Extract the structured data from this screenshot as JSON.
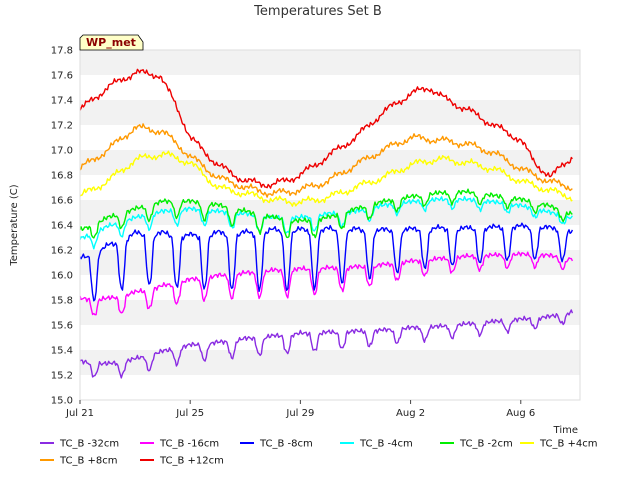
{
  "chart_data": {
    "type": "line",
    "title": "Temperatures Set B",
    "xlabel": "Time",
    "ylabel": "Temperature (C)",
    "badge": "WP_met",
    "x_range": [
      "Jul 21",
      "Aug 8"
    ],
    "ylim": [
      15.0,
      17.8
    ],
    "y_ticks": [
      "15.0",
      "15.2",
      "15.4",
      "15.6",
      "15.8",
      "16.0",
      "16.2",
      "16.4",
      "16.6",
      "16.8",
      "17.0",
      "17.2",
      "17.4",
      "17.6",
      "17.8"
    ],
    "x_ticks": [
      "Jul 21",
      "Jul 25",
      "Jul 29",
      "Aug 2",
      "Aug 6"
    ],
    "grid": "horizontal alternating bands",
    "legend_position": "bottom",
    "series": [
      {
        "name": "TC_B -32cm",
        "color": "#8a2be2",
        "day_offset": 0.35,
        "level": [
          [
            0,
            15.3
          ],
          [
            1,
            15.28
          ],
          [
            2,
            15.32
          ],
          [
            3,
            15.38
          ],
          [
            4,
            15.43
          ],
          [
            5,
            15.45
          ],
          [
            6,
            15.48
          ],
          [
            7,
            15.5
          ],
          [
            8,
            15.52
          ],
          [
            9,
            15.53
          ],
          [
            10,
            15.54
          ],
          [
            11,
            15.55
          ],
          [
            12,
            15.57
          ],
          [
            13,
            15.58
          ],
          [
            14,
            15.6
          ],
          [
            15,
            15.62
          ],
          [
            16,
            15.64
          ],
          [
            17,
            15.66
          ],
          [
            17.9,
            15.7
          ]
        ],
        "amplitude": [
          [
            0,
            0.1
          ],
          [
            8,
            0.14
          ],
          [
            12,
            0.1
          ],
          [
            17.9,
            0.07
          ]
        ]
      },
      {
        "name": "TC_B -16cm",
        "color": "#ff00ff",
        "day_offset": 0.35,
        "level": [
          [
            0,
            15.8
          ],
          [
            1,
            15.8
          ],
          [
            2,
            15.85
          ],
          [
            3,
            15.9
          ],
          [
            4,
            15.95
          ],
          [
            5,
            15.98
          ],
          [
            6,
            16.0
          ],
          [
            7,
            16.02
          ],
          [
            8,
            16.03
          ],
          [
            9,
            16.04
          ],
          [
            10,
            16.05
          ],
          [
            11,
            16.07
          ],
          [
            12,
            16.1
          ],
          [
            13,
            16.12
          ],
          [
            14,
            16.14
          ],
          [
            15,
            16.15
          ],
          [
            16,
            16.16
          ],
          [
            17,
            16.15
          ],
          [
            17.9,
            16.12
          ]
        ],
        "amplitude": [
          [
            0,
            0.12
          ],
          [
            8,
            0.2
          ],
          [
            12,
            0.12
          ],
          [
            17.9,
            0.08
          ]
        ]
      },
      {
        "name": "TC_B -8cm",
        "color": "#0000ff",
        "day_offset": 0.35,
        "level": [
          [
            0,
            16.1
          ],
          [
            1,
            16.2
          ],
          [
            2,
            16.3
          ],
          [
            3,
            16.3
          ],
          [
            4,
            16.28
          ],
          [
            5,
            16.3
          ],
          [
            6,
            16.3
          ],
          [
            7,
            16.32
          ],
          [
            8,
            16.32
          ],
          [
            9,
            16.33
          ],
          [
            10,
            16.33
          ],
          [
            11,
            16.33
          ],
          [
            12,
            16.34
          ],
          [
            13,
            16.35
          ],
          [
            14,
            16.35
          ],
          [
            15,
            16.36
          ],
          [
            16,
            16.37
          ],
          [
            17,
            16.36
          ],
          [
            17.9,
            16.33
          ]
        ],
        "amplitude": [
          [
            0,
            0.35
          ],
          [
            8,
            0.45
          ],
          [
            12,
            0.3
          ],
          [
            17.9,
            0.22
          ]
        ]
      },
      {
        "name": "TC_B -4cm",
        "color": "#00ffff",
        "day_offset": 0.35,
        "level": [
          [
            0,
            16.28
          ],
          [
            1,
            16.38
          ],
          [
            2,
            16.45
          ],
          [
            3,
            16.5
          ],
          [
            4,
            16.52
          ],
          [
            5,
            16.5
          ],
          [
            6,
            16.48
          ],
          [
            7,
            16.45
          ],
          [
            8,
            16.45
          ],
          [
            9,
            16.48
          ],
          [
            10,
            16.5
          ],
          [
            11,
            16.55
          ],
          [
            12,
            16.58
          ],
          [
            13,
            16.6
          ],
          [
            14,
            16.6
          ],
          [
            15,
            16.58
          ],
          [
            16,
            16.55
          ],
          [
            17,
            16.5
          ],
          [
            17.9,
            16.45
          ]
        ],
        "amplitude": [
          [
            0,
            0.1
          ],
          [
            8,
            0.12
          ],
          [
            12,
            0.07
          ],
          [
            17.9,
            0.06
          ]
        ]
      },
      {
        "name": "TC_B -2cm",
        "color": "#00ee00",
        "day_offset": 0.35,
        "level": [
          [
            0,
            16.35
          ],
          [
            1,
            16.45
          ],
          [
            2,
            16.52
          ],
          [
            3,
            16.58
          ],
          [
            4,
            16.58
          ],
          [
            5,
            16.55
          ],
          [
            6,
            16.5
          ],
          [
            7,
            16.45
          ],
          [
            8,
            16.42
          ],
          [
            9,
            16.45
          ],
          [
            10,
            16.52
          ],
          [
            11,
            16.58
          ],
          [
            12,
            16.62
          ],
          [
            13,
            16.65
          ],
          [
            14,
            16.66
          ],
          [
            15,
            16.63
          ],
          [
            16,
            16.6
          ],
          [
            17,
            16.55
          ],
          [
            17.9,
            16.48
          ]
        ],
        "amplitude": [
          [
            0,
            0.1
          ],
          [
            8,
            0.14
          ],
          [
            12,
            0.08
          ],
          [
            17.9,
            0.07
          ]
        ]
      },
      {
        "name": "TC_B +4cm",
        "color": "#ffff00",
        "day_offset": 0.0,
        "level": [
          [
            0,
            16.63
          ],
          [
            1,
            16.75
          ],
          [
            2,
            16.92
          ],
          [
            3,
            16.97
          ],
          [
            4,
            16.9
          ],
          [
            5,
            16.7
          ],
          [
            6,
            16.65
          ],
          [
            7,
            16.6
          ],
          [
            8,
            16.58
          ],
          [
            9,
            16.62
          ],
          [
            10,
            16.7
          ],
          [
            11,
            16.78
          ],
          [
            12,
            16.88
          ],
          [
            13,
            16.93
          ],
          [
            14,
            16.9
          ],
          [
            15,
            16.85
          ],
          [
            16,
            16.75
          ],
          [
            17,
            16.68
          ],
          [
            17.9,
            16.62
          ]
        ],
        "amplitude": [
          [
            0,
            0.02
          ],
          [
            17.9,
            0.02
          ]
        ]
      },
      {
        "name": "TC_B +8cm",
        "color": "#ff9900",
        "day_offset": 0.0,
        "level": [
          [
            0,
            16.85
          ],
          [
            1,
            17.0
          ],
          [
            2,
            17.18
          ],
          [
            3,
            17.15
          ],
          [
            4,
            16.95
          ],
          [
            5,
            16.78
          ],
          [
            6,
            16.7
          ],
          [
            7,
            16.65
          ],
          [
            8,
            16.68
          ],
          [
            9,
            16.75
          ],
          [
            10,
            16.88
          ],
          [
            11,
            17.0
          ],
          [
            12,
            17.1
          ],
          [
            13,
            17.08
          ],
          [
            14,
            17.05
          ],
          [
            15,
            16.98
          ],
          [
            16,
            16.85
          ],
          [
            17,
            16.75
          ],
          [
            17.9,
            16.7
          ]
        ],
        "amplitude": [
          [
            0,
            0.02
          ],
          [
            17.9,
            0.02
          ]
        ]
      },
      {
        "name": "TC_B +12cm",
        "color": "#ee0000",
        "day_offset": 0.0,
        "level": [
          [
            0,
            17.32
          ],
          [
            1,
            17.5
          ],
          [
            2,
            17.62
          ],
          [
            2.9,
            17.6
          ],
          [
            3.5,
            17.35
          ],
          [
            4,
            17.1
          ],
          [
            5,
            16.88
          ],
          [
            6,
            16.75
          ],
          [
            7,
            16.72
          ],
          [
            8,
            16.8
          ],
          [
            9,
            16.95
          ],
          [
            10,
            17.1
          ],
          [
            11,
            17.3
          ],
          [
            12,
            17.45
          ],
          [
            12.7,
            17.5
          ],
          [
            13.3,
            17.4
          ],
          [
            14,
            17.33
          ],
          [
            15,
            17.2
          ],
          [
            16,
            17.08
          ],
          [
            16.5,
            16.9
          ],
          [
            17.1,
            16.78
          ],
          [
            17.5,
            16.88
          ],
          [
            17.9,
            16.95
          ]
        ],
        "amplitude": [
          [
            0,
            0.02
          ],
          [
            17.9,
            0.02
          ]
        ]
      }
    ]
  }
}
